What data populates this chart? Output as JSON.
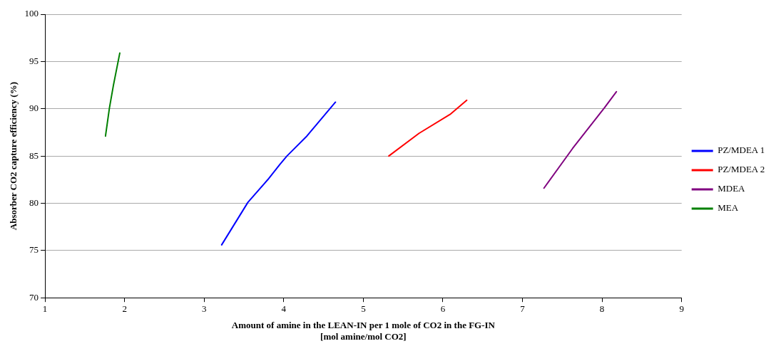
{
  "chart_data": {
    "type": "line",
    "xlabel": "Amount of amine in the LEAN-IN per 1 mole of CO2 in the FG-IN\n[mol amine/mol CO2]",
    "ylabel": "Absorber CO2 capture efficiency (%)",
    "xlim": [
      1,
      9
    ],
    "xticks": [
      1,
      2,
      3,
      4,
      5,
      6,
      7,
      8,
      9
    ],
    "ylim": [
      70,
      100
    ],
    "yticks": [
      70,
      75,
      80,
      85,
      90,
      95,
      100
    ],
    "grid": "y",
    "legend": "right",
    "marker": "none",
    "line_style": "solid",
    "series": [
      {
        "name": "PZ/MDEA 1",
        "color": "#0000ff",
        "x": [
          3.22,
          3.55,
          3.8,
          3.95,
          4.04,
          4.29,
          4.65
        ],
        "values": [
          75.6,
          80.1,
          82.5,
          84.1,
          85.0,
          87.1,
          90.7
        ]
      },
      {
        "name": "PZ/MDEA 2",
        "color": "#ff0000",
        "x": [
          5.32,
          5.7,
          6.09,
          6.3
        ],
        "values": [
          85.0,
          87.4,
          89.4,
          90.9
        ]
      },
      {
        "name": "MDEA",
        "color": "#800080",
        "x": [
          7.27,
          7.63,
          8.03,
          8.18
        ],
        "values": [
          81.6,
          85.8,
          90.1,
          91.8
        ]
      },
      {
        "name": "MEA",
        "color": "#008000",
        "x": [
          1.76,
          1.81,
          1.86,
          1.94
        ],
        "values": [
          87.1,
          90.1,
          92.5,
          95.9
        ]
      }
    ]
  }
}
